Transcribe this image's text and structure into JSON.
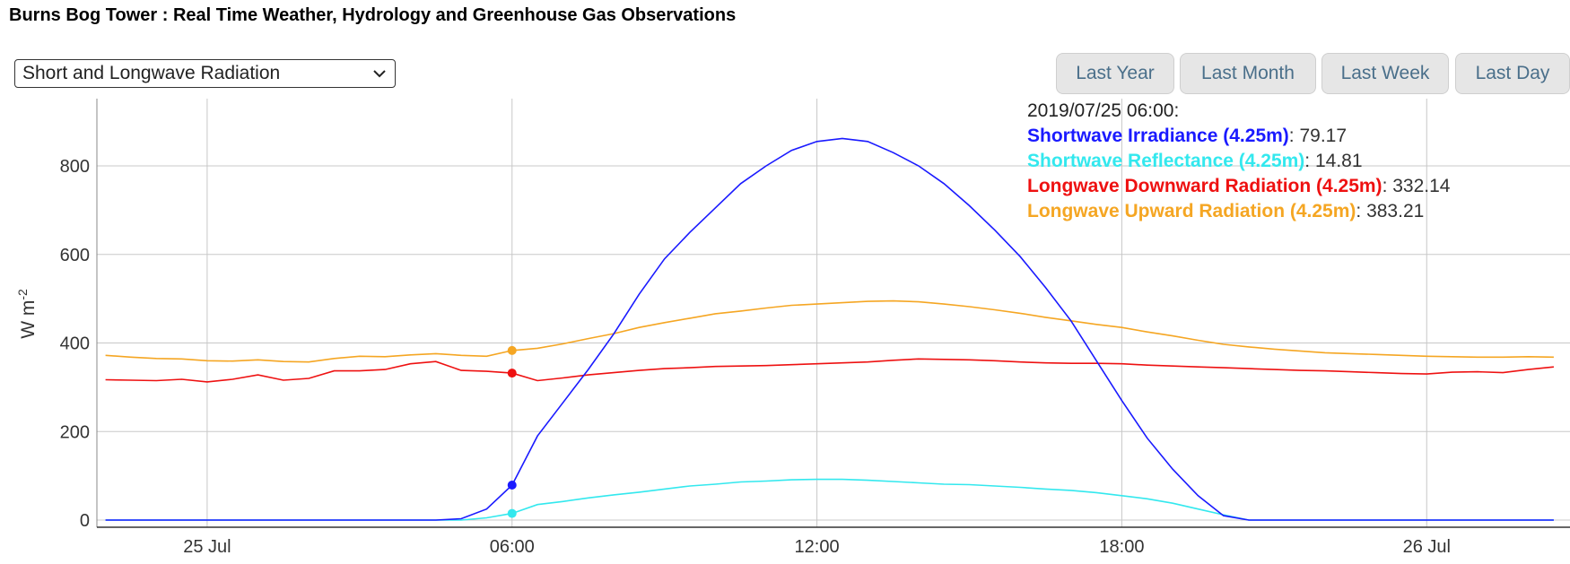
{
  "page_title": "Burns Bog Tower : Real Time Weather, Hydrology and Greenhouse Gas Observations",
  "selector": {
    "selected": "Short and Longwave Radiation"
  },
  "range_buttons": [
    "Last Year",
    "Last Month",
    "Last Week",
    "Last Day"
  ],
  "tooltip": {
    "time": "2019/07/25 06:00:",
    "rows": [
      {
        "name": "Shortwave Irradiance (4.25m)",
        "value": ": 79.17"
      },
      {
        "name": "Shortwave Reflectance (4.25m)",
        "value": ": 14.81"
      },
      {
        "name": "Longwave Downward Radiation (4.25m)",
        "value": ": 332.14"
      },
      {
        "name": "Longwave Upward Radiation (4.25m)",
        "value": ": 383.21"
      }
    ]
  },
  "chart_data": {
    "type": "line",
    "ylabel": "W m-2",
    "ylim": [
      0,
      900
    ],
    "yticks": [
      0,
      200,
      400,
      600,
      800
    ],
    "xlim": [
      -2.17,
      26.82
    ],
    "xticks": [
      {
        "hour": 0,
        "label": "25 Jul"
      },
      {
        "hour": 6,
        "label": "06:00"
      },
      {
        "hour": 12,
        "label": "12:00"
      },
      {
        "hour": 18,
        "label": "18:00"
      },
      {
        "hour": 24,
        "label": "26 Jul"
      }
    ],
    "x_hours": [
      -2.0,
      -1.5,
      -1.0,
      -0.5,
      0.0,
      0.5,
      1.0,
      1.5,
      2.0,
      2.5,
      3.0,
      3.5,
      4.0,
      4.5,
      5.0,
      5.5,
      6.0,
      6.5,
      7.0,
      7.5,
      8.0,
      8.5,
      9.0,
      9.5,
      10.0,
      10.5,
      11.0,
      11.5,
      12.0,
      12.5,
      13.0,
      13.5,
      14.0,
      14.5,
      15.0,
      15.5,
      16.0,
      16.5,
      17.0,
      17.5,
      18.0,
      18.5,
      19.0,
      19.5,
      20.0,
      20.5,
      21.0,
      21.5,
      22.0,
      22.5,
      23.0,
      23.5,
      24.0,
      24.5,
      25.0,
      25.5,
      26.0,
      26.5
    ],
    "series": [
      {
        "name": "Shortwave Irradiance (4.25m)",
        "color": "#1a1aff",
        "values": [
          0,
          0,
          0,
          0,
          0,
          0,
          0,
          0,
          0,
          0,
          0,
          0,
          0,
          0,
          3,
          25,
          79,
          190,
          265,
          340,
          420,
          510,
          590,
          650,
          705,
          760,
          800,
          835,
          855,
          862,
          855,
          830,
          800,
          760,
          710,
          655,
          595,
          525,
          450,
          360,
          270,
          185,
          115,
          55,
          10,
          0,
          0,
          0,
          0,
          0,
          0,
          0,
          0,
          0,
          0,
          0,
          0,
          0
        ]
      },
      {
        "name": "Shortwave Reflectance (4.25m)",
        "color": "#33e8ee",
        "values": [
          0,
          0,
          0,
          0,
          0,
          0,
          0,
          0,
          0,
          0,
          0,
          0,
          0,
          0,
          0,
          5,
          15,
          35,
          42,
          50,
          57,
          63,
          70,
          77,
          81,
          86,
          88,
          91,
          92,
          92,
          90,
          87,
          84,
          81,
          80,
          77,
          74,
          70,
          67,
          62,
          55,
          48,
          38,
          25,
          12,
          0,
          0,
          0,
          0,
          0,
          0,
          0,
          0,
          0,
          0,
          0,
          0,
          0
        ]
      },
      {
        "name": "Longwave Downward Radiation (4.25m)",
        "color": "#ee1111",
        "values": [
          317,
          316,
          315,
          318,
          312,
          318,
          328,
          316,
          320,
          337,
          337,
          340,
          353,
          358,
          338,
          336,
          332,
          315,
          321,
          328,
          333,
          338,
          342,
          344,
          347,
          348,
          349,
          351,
          353,
          355,
          357,
          361,
          364,
          363,
          362,
          360,
          357,
          355,
          354,
          354,
          353,
          350,
          348,
          346,
          344,
          342,
          340,
          338,
          337,
          335,
          333,
          331,
          330,
          334,
          335,
          333,
          340,
          346
        ]
      },
      {
        "name": "Longwave Upward Radiation (4.25m)",
        "color": "#f5a623",
        "values": [
          372,
          368,
          365,
          364,
          360,
          359,
          362,
          358,
          357,
          365,
          370,
          369,
          373,
          376,
          372,
          370,
          383,
          388,
          398,
          410,
          421,
          435,
          446,
          456,
          466,
          472,
          479,
          485,
          488,
          491,
          494,
          495,
          493,
          488,
          482,
          475,
          467,
          458,
          450,
          442,
          435,
          425,
          416,
          406,
          397,
          391,
          386,
          382,
          378,
          376,
          374,
          372,
          370,
          369,
          368,
          368,
          369,
          368
        ]
      }
    ],
    "marker_hour": 6,
    "grid": true
  }
}
